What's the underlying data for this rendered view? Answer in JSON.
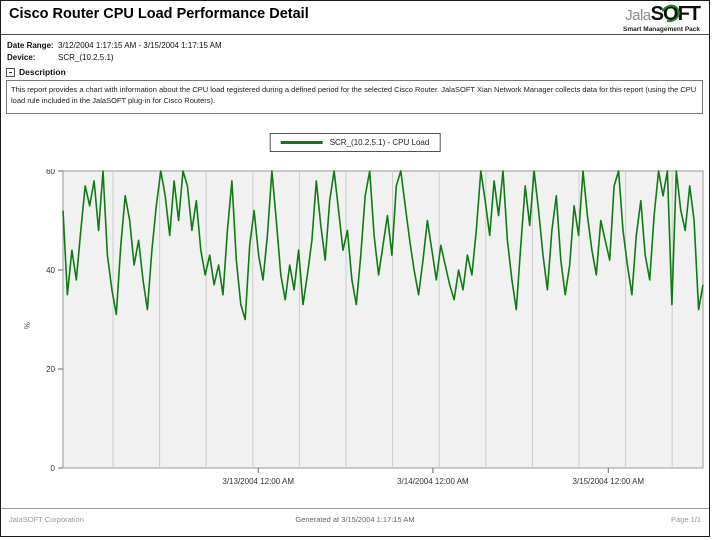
{
  "page": {
    "title": "Cisco Router CPU Load Performance Detail",
    "logo": {
      "jala": "Jala",
      "soft_s": "S",
      "soft_o": "O",
      "soft_ft": "FT",
      "tagline": "Smart Management Pack"
    },
    "meta": {
      "date_range_label": "Date Range:",
      "date_range": "3/12/2004 1:17:15 AM - 3/15/2004 1:17:15 AM",
      "device_label": "Device:",
      "device": "SCR_(10.2.5.1)"
    },
    "description": {
      "header": "Description",
      "text": "This report provides a chart with information about the CPU load registered during a defined period for the selected Cisco Router. JalaSOFT Xian Network Manager collects data for this report (using the CPU load rule included in the JalaSOFT plug-in for Cisco Routers)."
    },
    "footer": {
      "left": "JalaSOFT Corporation",
      "center": "Generated at 3/15/2004 1:17:15 AM",
      "right": "Page 1/1"
    }
  },
  "chart_data": {
    "type": "line",
    "title": "",
    "legend_label": "SCR_(10.2.5.1) - CPU Load",
    "legend_position": "top-center",
    "ylabel": "%",
    "xlabel": "",
    "ylim": [
      0,
      60
    ],
    "yticks": [
      0,
      20,
      40,
      60
    ],
    "x_range": [
      "3/12/2004 1:17:15 AM",
      "3/15/2004 1:17:15 AM"
    ],
    "xticks": [
      {
        "label": "3/13/2004 12:00 AM",
        "pos": 0.305
      },
      {
        "label": "3/14/2004 12:00 AM",
        "pos": 0.578
      },
      {
        "label": "3/15/2004 12:00 AM",
        "pos": 0.852
      }
    ],
    "grid": {
      "vertical": true,
      "horizontal": false
    },
    "colors": {
      "line": "#0e7c12",
      "plot_bg": "#f1f1f1",
      "grid": "#cdcdcd",
      "frame": "#999999"
    },
    "series": [
      {
        "name": "SCR_(10.2.5.1) - CPU Load",
        "color": "#0e7c12",
        "values": [
          52,
          35,
          44,
          38,
          48,
          57,
          53,
          58,
          48,
          60,
          43,
          36,
          31,
          45,
          55,
          50,
          41,
          46,
          38,
          32,
          44,
          53,
          60,
          55,
          47,
          58,
          50,
          60,
          57,
          48,
          54,
          44,
          39,
          43,
          37,
          41,
          35,
          48,
          58,
          42,
          33,
          30,
          45,
          52,
          43,
          38,
          47,
          60,
          50,
          39,
          34,
          41,
          36,
          44,
          33,
          39,
          46,
          58,
          49,
          42,
          54,
          60,
          52,
          44,
          48,
          38,
          33,
          43,
          55,
          60,
          47,
          39,
          45,
          51,
          43,
          57,
          60,
          53,
          46,
          40,
          35,
          42,
          50,
          44,
          38,
          45,
          41,
          37,
          34,
          40,
          36,
          43,
          39,
          48,
          60,
          54,
          47,
          58,
          51,
          60,
          46,
          38,
          32,
          45,
          57,
          49,
          60,
          52,
          43,
          36,
          48,
          55,
          42,
          35,
          41,
          53,
          47,
          60,
          51,
          44,
          39,
          50,
          46,
          42,
          57,
          60,
          48,
          41,
          35,
          47,
          54,
          43,
          38,
          51,
          60,
          55,
          60,
          33,
          60,
          52,
          48,
          57,
          50,
          32,
          37
        ]
      }
    ]
  }
}
